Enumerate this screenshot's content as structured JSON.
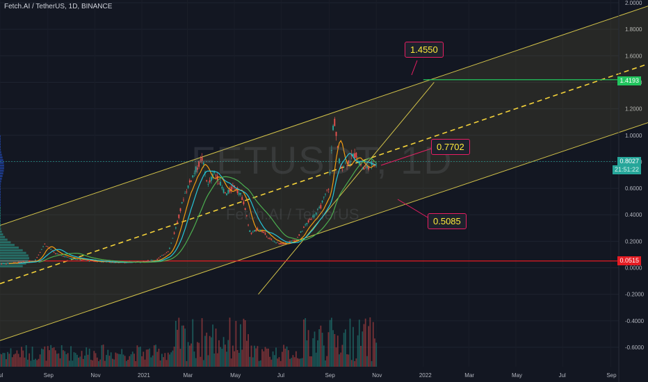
{
  "header": {
    "title": "Fetch.AI / TetherUS, 1D, BINANCE"
  },
  "watermark": {
    "symbol": "FETUSDT, 1D",
    "name": "Fetch.AI / TetherUS"
  },
  "colors": {
    "background": "#131722",
    "channel": "#d4c44a",
    "channel_fill": "rgba(212,196,74,0.10)",
    "midline": "#f5d33a",
    "resistance": "#22c55e",
    "support": "#e51c23",
    "up": "#26a69a",
    "down": "#ef5350",
    "ma_fast": "#f39c12",
    "ma_mid": "#26c6da",
    "ma_slow": "#4caf50",
    "callout_border": "#e91e63",
    "callout_text": "#ffeb3b"
  },
  "callouts": [
    {
      "label": "1.4550",
      "value": 1.455
    },
    {
      "label": "0.7702",
      "value": 0.7702
    },
    {
      "label": "0.5085",
      "value": 0.5085
    }
  ],
  "price_tags": {
    "resistance": "1.4193",
    "current": "0.8027",
    "countdown": "21:51:22",
    "support": "0.0515"
  },
  "chart_data": {
    "type": "candlestick",
    "title": "Fetch.AI / TetherUS, 1D, BINANCE",
    "x_ticks": [
      "Jul",
      "Sep",
      "Nov",
      "2021",
      "Mar",
      "May",
      "Jul",
      "Sep",
      "Nov",
      "2022",
      "Mar",
      "May",
      "Jul",
      "Sep"
    ],
    "y_ticks": [
      "2.0000",
      "1.8000",
      "1.6000",
      "1.4000",
      "1.2000",
      "1.0000",
      "0.8000",
      "0.6000",
      "0.4000",
      "0.2000",
      "0.0000",
      "-0.2000",
      "-0.4000",
      "-0.6000"
    ],
    "ylim": [
      -0.6,
      2.0
    ],
    "price_path": [
      [
        "2020-07-01",
        0.03
      ],
      [
        "2020-08-15",
        0.05
      ],
      [
        "2020-08-28",
        0.18
      ],
      [
        "2020-09-10",
        0.11
      ],
      [
        "2020-10-01",
        0.07
      ],
      [
        "2020-11-01",
        0.05
      ],
      [
        "2020-12-01",
        0.04
      ],
      [
        "2021-01-01",
        0.045
      ],
      [
        "2021-01-20",
        0.06
      ],
      [
        "2021-02-05",
        0.13
      ],
      [
        "2021-02-15",
        0.32
      ],
      [
        "2021-02-25",
        0.55
      ],
      [
        "2021-03-10",
        0.72
      ],
      [
        "2021-03-20",
        0.82
      ],
      [
        "2021-03-28",
        0.62
      ],
      [
        "2021-04-05",
        0.72
      ],
      [
        "2021-04-20",
        0.55
      ],
      [
        "2021-05-01",
        0.62
      ],
      [
        "2021-05-12",
        0.52
      ],
      [
        "2021-05-22",
        0.25
      ],
      [
        "2021-06-01",
        0.3
      ],
      [
        "2021-06-20",
        0.2
      ],
      [
        "2021-07-01",
        0.18
      ],
      [
        "2021-07-20",
        0.21
      ],
      [
        "2021-08-01",
        0.32
      ],
      [
        "2021-08-20",
        0.45
      ],
      [
        "2021-09-01",
        0.62
      ],
      [
        "2021-09-07",
        1.15
      ],
      [
        "2021-09-15",
        0.75
      ],
      [
        "2021-09-25",
        0.8
      ],
      [
        "2021-10-05",
        0.86
      ],
      [
        "2021-10-15",
        0.74
      ],
      [
        "2021-10-25",
        0.78
      ],
      [
        "2021-11-01",
        0.8
      ]
    ],
    "levels": {
      "resistance": 1.4193,
      "support": 0.0515,
      "current": 0.8027
    },
    "channel": {
      "upper": [
        [
          "2020-07-01",
          0.32
        ],
        [
          "2022-11-01",
          2.0
        ]
      ],
      "lower": [
        [
          "2020-07-01",
          -0.55
        ],
        [
          "2022-11-01",
          1.12
        ]
      ],
      "mid": [
        [
          "2020-07-01",
          -0.12
        ],
        [
          "2022-11-01",
          1.55
        ]
      ]
    },
    "trendline": [
      [
        "2021-06-01",
        0.1
      ],
      [
        "2022-01-15",
        1.4
      ]
    ]
  }
}
